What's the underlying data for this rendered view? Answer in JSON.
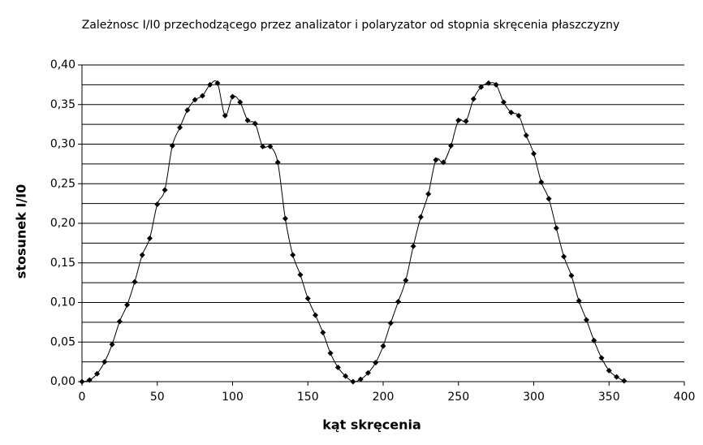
{
  "chart_data": {
    "type": "line",
    "title": "Zależnosc I/I0 przechodzącego przez analizator i polaryzator od stopnia skręcenia płaszczyzny",
    "x_label": "kąt skręcenia",
    "y_label": "stosunek I/I0",
    "x": [
      0,
      5,
      10,
      15,
      20,
      25,
      30,
      35,
      40,
      45,
      50,
      55,
      60,
      65,
      70,
      75,
      80,
      85,
      90,
      95,
      100,
      105,
      110,
      115,
      120,
      125,
      130,
      135,
      140,
      145,
      150,
      155,
      160,
      165,
      170,
      175,
      180,
      185,
      190,
      195,
      200,
      205,
      210,
      215,
      220,
      225,
      230,
      235,
      240,
      245,
      250,
      255,
      260,
      265,
      270,
      275,
      280,
      285,
      290,
      295,
      300,
      305,
      310,
      315,
      320,
      325,
      330,
      335,
      340,
      345,
      350,
      355,
      360
    ],
    "series": [
      {
        "color": "#000000",
        "values": [
          0.0,
          0.002,
          0.01,
          0.025,
          0.047,
          0.076,
          0.097,
          0.126,
          0.16,
          0.181,
          0.224,
          0.242,
          0.298,
          0.321,
          0.343,
          0.356,
          0.361,
          0.375,
          0.377,
          0.336,
          0.36,
          0.353,
          0.33,
          0.326,
          0.297,
          0.297,
          0.277,
          0.206,
          0.16,
          0.135,
          0.105,
          0.084,
          0.062,
          0.036,
          0.018,
          0.007,
          0.0,
          0.003,
          0.011,
          0.024,
          0.045,
          0.074,
          0.101,
          0.128,
          0.171,
          0.208,
          0.237,
          0.28,
          0.277,
          0.298,
          0.33,
          0.329,
          0.357,
          0.372,
          0.377,
          0.375,
          0.353,
          0.34,
          0.336,
          0.311,
          0.288,
          0.252,
          0.231,
          0.194,
          0.158,
          0.134,
          0.102,
          0.078,
          0.052,
          0.03,
          0.014,
          0.006,
          0.001
        ]
      }
    ],
    "xlim": [
      0,
      400
    ],
    "xticks": [
      0,
      50,
      100,
      150,
      200,
      250,
      300,
      350,
      400
    ],
    "ylim": [
      0,
      0.4
    ],
    "yticks": [
      {
        "value": 0,
        "label": "0,00"
      },
      {
        "value": 0.05,
        "label": "0,05"
      },
      {
        "value": 0.1,
        "label": "0,10"
      },
      {
        "value": 0.15,
        "label": "0,15"
      },
      {
        "value": 0.2,
        "label": "0,20"
      },
      {
        "value": 0.25,
        "label": "0,25"
      },
      {
        "value": 0.3,
        "label": "0,30"
      },
      {
        "value": 0.35,
        "label": "0,35"
      },
      {
        "value": 0.4,
        "label": "0,40"
      }
    ],
    "minor_yticks": [
      0.025,
      0.075,
      0.125,
      0.175,
      0.225,
      0.275,
      0.325,
      0.375
    ],
    "grid": true
  }
}
